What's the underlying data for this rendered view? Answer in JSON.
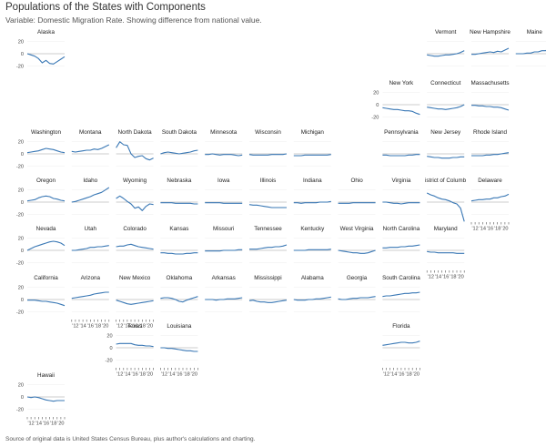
{
  "title": "Populations of the States with Components",
  "subtitle": "Variable: Domestic Migration Rate. Showing difference from national value.",
  "footer": "Source of original data is United States Census Bureau, plus author's calculations and charting.",
  "colors": {
    "line": "#3a78b5",
    "zero": "#bbbbbb",
    "tick": "#555555"
  },
  "chart_data": {
    "type": "line",
    "layout": "small-multiples-tile-grid",
    "x": [
      2011,
      2012,
      2013,
      2014,
      2015,
      2016,
      2017,
      2018,
      2019,
      2020,
      2021
    ],
    "x_tick_labels": [
      "'12",
      "'14",
      "'16",
      "'18",
      "'20"
    ],
    "y_ticks": [
      20,
      0,
      -20
    ],
    "ylim": [
      -30,
      27
    ],
    "panels": [
      {
        "name": "Alaska",
        "row": 0,
        "col": 0,
        "values": [
          0,
          -2,
          -4,
          -8,
          -15,
          -11,
          -16,
          -17,
          -13,
          -9,
          -5
        ]
      },
      {
        "name": "Vermont",
        "row": 0,
        "col": 9,
        "values": [
          -2,
          -3,
          -4,
          -4,
          -3,
          -2,
          -2,
          -1,
          0,
          2,
          5
        ]
      },
      {
        "name": "New Hampshire",
        "row": 0,
        "col": 10,
        "values": [
          -1,
          -1,
          0,
          1,
          2,
          3,
          2,
          4,
          3,
          6,
          9
        ]
      },
      {
        "name": "Maine",
        "row": 0,
        "col": 11,
        "values": [
          0,
          0,
          0,
          1,
          1,
          3,
          3,
          5,
          5,
          9,
          13
        ]
      },
      {
        "name": "New York",
        "row": 1,
        "col": 8,
        "values": [
          -5,
          -6,
          -7,
          -8,
          -8,
          -9,
          -10,
          -10,
          -11,
          -14,
          -16
        ]
      },
      {
        "name": "Connecticut",
        "row": 1,
        "col": 9,
        "values": [
          -4,
          -5,
          -6,
          -7,
          -7,
          -8,
          -7,
          -6,
          -5,
          -3,
          0
        ]
      },
      {
        "name": "Massachusetts",
        "row": 1,
        "col": 10,
        "values": [
          -1,
          -1,
          -2,
          -2,
          -3,
          -3,
          -4,
          -4,
          -5,
          -7,
          -9
        ]
      },
      {
        "name": "Washington",
        "row": 2,
        "col": 0,
        "values": [
          2,
          3,
          4,
          5,
          7,
          9,
          8,
          7,
          5,
          3,
          2
        ]
      },
      {
        "name": "Montana",
        "row": 2,
        "col": 1,
        "values": [
          4,
          3,
          4,
          5,
          6,
          6,
          8,
          7,
          9,
          12,
          15
        ]
      },
      {
        "name": "North Dakota",
        "row": 2,
        "col": 2,
        "values": [
          10,
          20,
          15,
          14,
          0,
          -6,
          -4,
          -3,
          -8,
          -10,
          -7
        ]
      },
      {
        "name": "South Dakota",
        "row": 2,
        "col": 3,
        "values": [
          0,
          2,
          3,
          2,
          1,
          0,
          1,
          2,
          3,
          5,
          6
        ]
      },
      {
        "name": "Minnesota",
        "row": 2,
        "col": 4,
        "values": [
          -1,
          -1,
          0,
          -1,
          -2,
          -1,
          -1,
          -1,
          -2,
          -3,
          -2
        ]
      },
      {
        "name": "Wisconsin",
        "row": 2,
        "col": 5,
        "values": [
          -1,
          -2,
          -2,
          -2,
          -2,
          -2,
          -1,
          -1,
          -1,
          -1,
          0
        ]
      },
      {
        "name": "Michigan",
        "row": 2,
        "col": 6,
        "values": [
          -3,
          -3,
          -3,
          -2,
          -2,
          -2,
          -2,
          -2,
          -2,
          -2,
          -1
        ]
      },
      {
        "name": "Pennsylvania",
        "row": 2,
        "col": 8,
        "values": [
          -2,
          -2,
          -3,
          -3,
          -3,
          -3,
          -3,
          -2,
          -2,
          -1,
          -1
        ]
      },
      {
        "name": "New Jersey",
        "row": 2,
        "col": 9,
        "values": [
          -4,
          -5,
          -6,
          -6,
          -7,
          -7,
          -7,
          -6,
          -6,
          -5,
          -5
        ]
      },
      {
        "name": "Rhode Island",
        "row": 2,
        "col": 10,
        "values": [
          -3,
          -3,
          -3,
          -3,
          -2,
          -2,
          -1,
          -1,
          0,
          1,
          2
        ]
      },
      {
        "name": "Oregon",
        "row": 3,
        "col": 0,
        "values": [
          2,
          3,
          4,
          7,
          9,
          10,
          9,
          6,
          5,
          3,
          2
        ]
      },
      {
        "name": "Idaho",
        "row": 3,
        "col": 1,
        "values": [
          0,
          1,
          3,
          5,
          7,
          9,
          12,
          14,
          16,
          20,
          24
        ]
      },
      {
        "name": "Wyoming",
        "row": 3,
        "col": 2,
        "values": [
          6,
          10,
          6,
          1,
          -3,
          -10,
          -8,
          -14,
          -7,
          -3,
          -4
        ]
      },
      {
        "name": "Nebraska",
        "row": 3,
        "col": 3,
        "values": [
          -1,
          -1,
          -1,
          -1,
          -2,
          -2,
          -2,
          -2,
          -2,
          -3,
          -3
        ]
      },
      {
        "name": "Iowa",
        "row": 3,
        "col": 4,
        "values": [
          -1,
          -1,
          -1,
          -1,
          -1,
          -2,
          -2,
          -2,
          -2,
          -2,
          -2
        ]
      },
      {
        "name": "Illinois",
        "row": 3,
        "col": 5,
        "values": [
          -4,
          -5,
          -5,
          -6,
          -7,
          -8,
          -9,
          -9,
          -9,
          -9,
          -9
        ]
      },
      {
        "name": "Indiana",
        "row": 3,
        "col": 6,
        "values": [
          -1,
          -1,
          -2,
          -1,
          -1,
          -1,
          -1,
          0,
          0,
          0,
          1
        ]
      },
      {
        "name": "Ohio",
        "row": 3,
        "col": 7,
        "values": [
          -2,
          -2,
          -2,
          -2,
          -1,
          -1,
          -1,
          -1,
          -1,
          -1,
          -1
        ]
      },
      {
        "name": "Virginia",
        "row": 3,
        "col": 8,
        "values": [
          0,
          0,
          -1,
          -2,
          -2,
          -3,
          -2,
          -1,
          -1,
          -1,
          -1
        ]
      },
      {
        "name": "District of Columbia",
        "row": 3,
        "col": 9,
        "values": [
          15,
          12,
          10,
          7,
          5,
          4,
          2,
          -1,
          -3,
          -10,
          -32
        ]
      },
      {
        "name": "Delaware",
        "row": 3,
        "col": 10,
        "values": [
          2,
          3,
          4,
          4,
          5,
          5,
          7,
          7,
          9,
          10,
          13
        ]
      },
      {
        "name": "Nevada",
        "row": 4,
        "col": 0,
        "values": [
          0,
          3,
          6,
          8,
          10,
          12,
          14,
          15,
          14,
          12,
          8
        ]
      },
      {
        "name": "Utah",
        "row": 4,
        "col": 1,
        "values": [
          0,
          0,
          1,
          2,
          3,
          5,
          5,
          6,
          6,
          7,
          8
        ]
      },
      {
        "name": "Colorado",
        "row": 4,
        "col": 2,
        "values": [
          6,
          7,
          7,
          9,
          10,
          8,
          6,
          5,
          4,
          3,
          2
        ]
      },
      {
        "name": "Kansas",
        "row": 4,
        "col": 3,
        "values": [
          -4,
          -4,
          -5,
          -5,
          -6,
          -6,
          -6,
          -5,
          -5,
          -4,
          -4
        ]
      },
      {
        "name": "Missouri",
        "row": 4,
        "col": 4,
        "values": [
          -1,
          -1,
          -1,
          -1,
          -1,
          0,
          0,
          0,
          0,
          1,
          1
        ]
      },
      {
        "name": "Tennessee",
        "row": 4,
        "col": 5,
        "values": [
          2,
          2,
          2,
          3,
          4,
          5,
          5,
          6,
          6,
          7,
          9
        ]
      },
      {
        "name": "Kentucky",
        "row": 4,
        "col": 6,
        "values": [
          0,
          0,
          0,
          0,
          1,
          1,
          1,
          1,
          1,
          1,
          2
        ]
      },
      {
        "name": "West Virginia",
        "row": 4,
        "col": 7,
        "values": [
          0,
          -1,
          -2,
          -3,
          -4,
          -4,
          -5,
          -5,
          -4,
          -2,
          0
        ]
      },
      {
        "name": "North Carolina",
        "row": 4,
        "col": 8,
        "values": [
          4,
          4,
          5,
          5,
          5,
          6,
          6,
          7,
          7,
          8,
          9
        ]
      },
      {
        "name": "Maryland",
        "row": 4,
        "col": 9,
        "values": [
          -2,
          -3,
          -3,
          -4,
          -4,
          -4,
          -4,
          -4,
          -5,
          -5,
          -5
        ]
      },
      {
        "name": "California",
        "row": 5,
        "col": 0,
        "values": [
          -1,
          -1,
          -1,
          -2,
          -3,
          -3,
          -4,
          -5,
          -6,
          -8,
          -10
        ]
      },
      {
        "name": "Arizona",
        "row": 5,
        "col": 1,
        "values": [
          2,
          3,
          4,
          5,
          6,
          7,
          9,
          10,
          11,
          12,
          12
        ]
      },
      {
        "name": "New Mexico",
        "row": 5,
        "col": 2,
        "values": [
          -1,
          -3,
          -5,
          -7,
          -8,
          -7,
          -6,
          -5,
          -4,
          -3,
          -2
        ]
      },
      {
        "name": "Oklahoma",
        "row": 5,
        "col": 3,
        "values": [
          2,
          3,
          3,
          2,
          0,
          -3,
          -4,
          -1,
          1,
          3,
          5
        ]
      },
      {
        "name": "Arkansas",
        "row": 5,
        "col": 4,
        "values": [
          0,
          0,
          0,
          -1,
          0,
          0,
          1,
          1,
          1,
          2,
          3
        ]
      },
      {
        "name": "Mississippi",
        "row": 5,
        "col": 5,
        "values": [
          -2,
          -1,
          -3,
          -4,
          -4,
          -5,
          -5,
          -4,
          -3,
          -2,
          -1
        ]
      },
      {
        "name": "Alabama",
        "row": 5,
        "col": 6,
        "values": [
          0,
          -1,
          -1,
          -1,
          0,
          0,
          1,
          1,
          2,
          3,
          4
        ]
      },
      {
        "name": "Georgia",
        "row": 5,
        "col": 7,
        "values": [
          1,
          0,
          0,
          1,
          2,
          2,
          3,
          3,
          3,
          4,
          5
        ]
      },
      {
        "name": "South Carolina",
        "row": 5,
        "col": 8,
        "values": [
          5,
          6,
          6,
          7,
          8,
          9,
          10,
          10,
          11,
          11,
          12
        ]
      },
      {
        "name": "Texas",
        "row": 6,
        "col": 2,
        "values": [
          6,
          7,
          7,
          7,
          7,
          5,
          4,
          4,
          3,
          3,
          2
        ]
      },
      {
        "name": "Louisiana",
        "row": 6,
        "col": 3,
        "values": [
          0,
          0,
          -1,
          -1,
          -2,
          -3,
          -4,
          -5,
          -5,
          -6,
          -6
        ]
      },
      {
        "name": "Florida",
        "row": 6,
        "col": 8,
        "values": [
          4,
          5,
          6,
          7,
          8,
          9,
          9,
          8,
          8,
          9,
          11
        ]
      },
      {
        "name": "Hawaii",
        "row": 7,
        "col": 0,
        "values": [
          0,
          -1,
          0,
          -1,
          -3,
          -5,
          -6,
          -7,
          -6,
          -6,
          -6
        ]
      }
    ],
    "x_tick_panels": [
      "Hawaii",
      "Texas",
      "Louisiana",
      "Florida",
      "Arizona",
      "New Mexico",
      "Maryland",
      "Delaware"
    ],
    "y_tick_panels": [
      "Alaska",
      "Hawaii",
      "New York",
      "Washington",
      "Oregon",
      "Nevada",
      "California",
      "Texas"
    ]
  }
}
